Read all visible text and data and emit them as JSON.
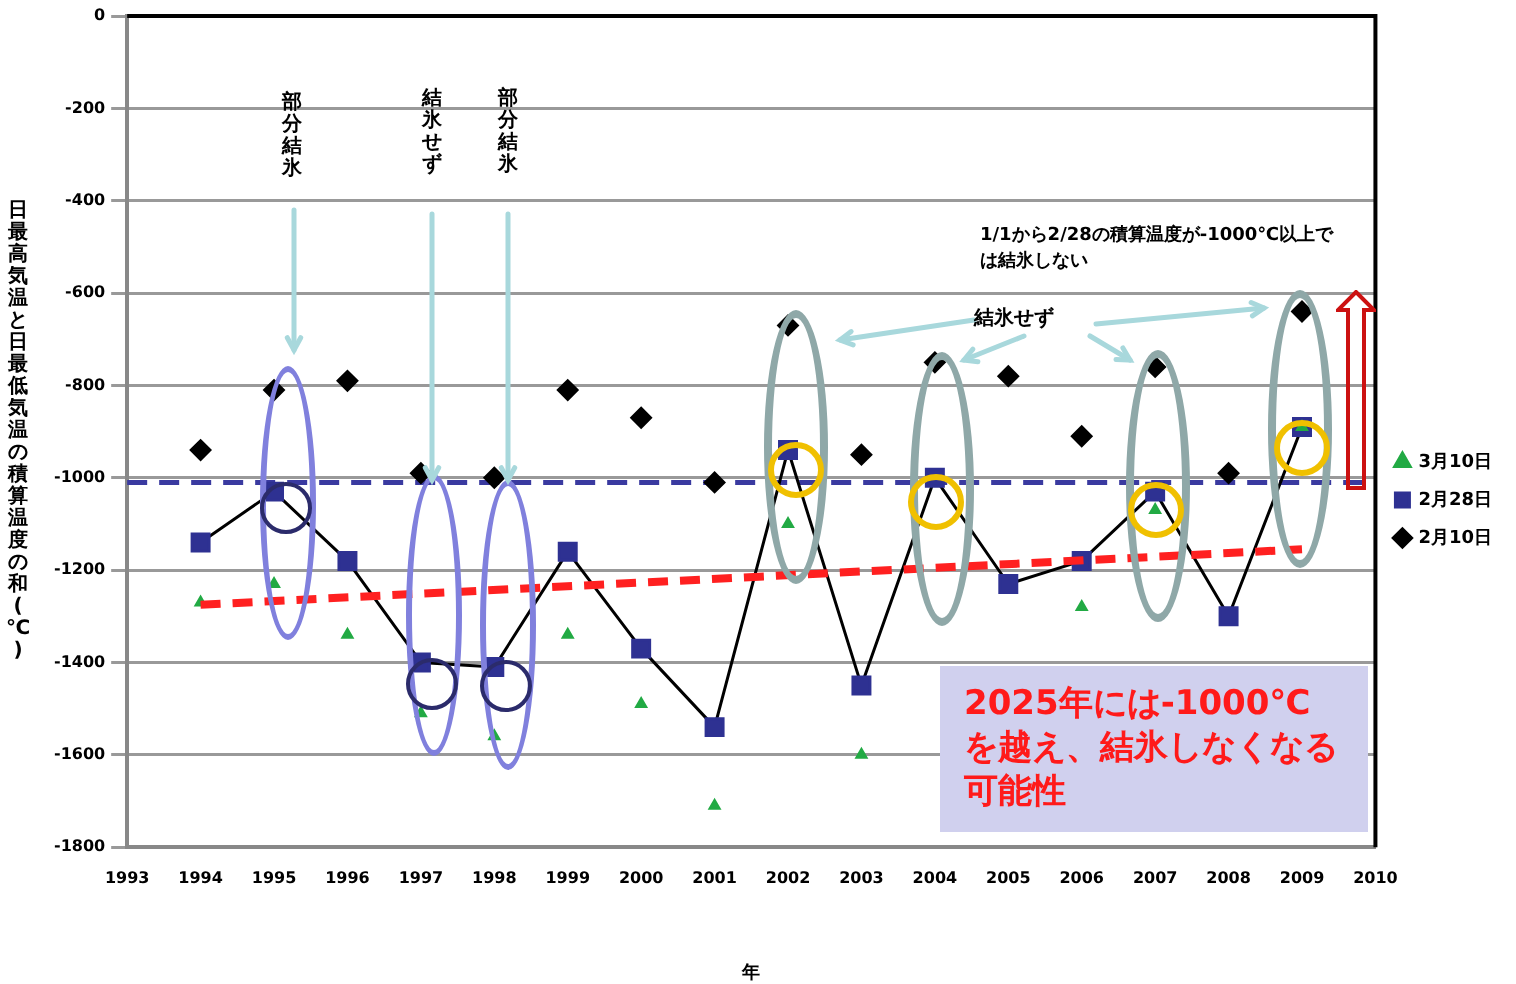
{
  "chart_data": {
    "type": "scatter",
    "xlabel": "年",
    "ylabel": "日最高気温と日最低気温の積算温度の和(℃)",
    "x": [
      1994,
      1995,
      1996,
      1997,
      1998,
      1999,
      2000,
      2001,
      2002,
      2003,
      2004,
      2005,
      2006,
      2007,
      2008,
      2009
    ],
    "xlim": [
      1993,
      2010
    ],
    "xticks": [
      1993,
      1994,
      1995,
      1996,
      1997,
      1998,
      1999,
      2000,
      2001,
      2002,
      2003,
      2004,
      2005,
      2006,
      2007,
      2008,
      2009,
      2010
    ],
    "ylim": [
      -1800,
      0
    ],
    "yticks": [
      0,
      -200,
      -400,
      -600,
      -800,
      -1000,
      -1200,
      -1400,
      -1600,
      -1800
    ],
    "grid": "y",
    "legend": "right",
    "series": [
      {
        "name": "2月10日",
        "type": "scatter",
        "marker": "diamond",
        "color": "#000000",
        "values": [
          -940,
          -810,
          -790,
          -990,
          -1000,
          -810,
          -870,
          -1010,
          -670,
          -950,
          -750,
          -780,
          -910,
          -760,
          -990,
          -640
        ]
      },
      {
        "name": "2月28日",
        "type": "line",
        "marker": "square",
        "color": "#2e3192",
        "values": [
          -1140,
          -1030,
          -1180,
          -1400,
          -1410,
          -1160,
          -1370,
          -1540,
          -940,
          -1450,
          -1000,
          -1230,
          -1180,
          -1030,
          -1300,
          -890
        ]
      },
      {
        "name": "3月10日",
        "type": "scatter",
        "marker": "triangle",
        "color": "#22aa44",
        "values": [
          -1270,
          -1230,
          -1340,
          -1510,
          -1560,
          -1340,
          -1490,
          -1710,
          -1100,
          -1600,
          null,
          null,
          -1280,
          -1070,
          null,
          -890
        ]
      },
      {
        "type": "line",
        "marker": "none",
        "line_style": "dashed",
        "color": "#ff2020",
        "x": [
          1994,
          2009
        ],
        "values": [
          -1275,
          -1155
        ]
      }
    ],
    "ref_lines": [
      {
        "axis": "y",
        "value": -1010,
        "color": "#3a3aa0",
        "line_style": "dashed"
      }
    ],
    "annotations": [
      "部分結氷",
      "結氷せず",
      "部分結氷",
      "1/1から2/28の積算温度が-1000℃以上では結氷しない",
      "結氷せず",
      "2025年には-1000℃を越え、結氷しなくなる可能性"
    ]
  }
}
